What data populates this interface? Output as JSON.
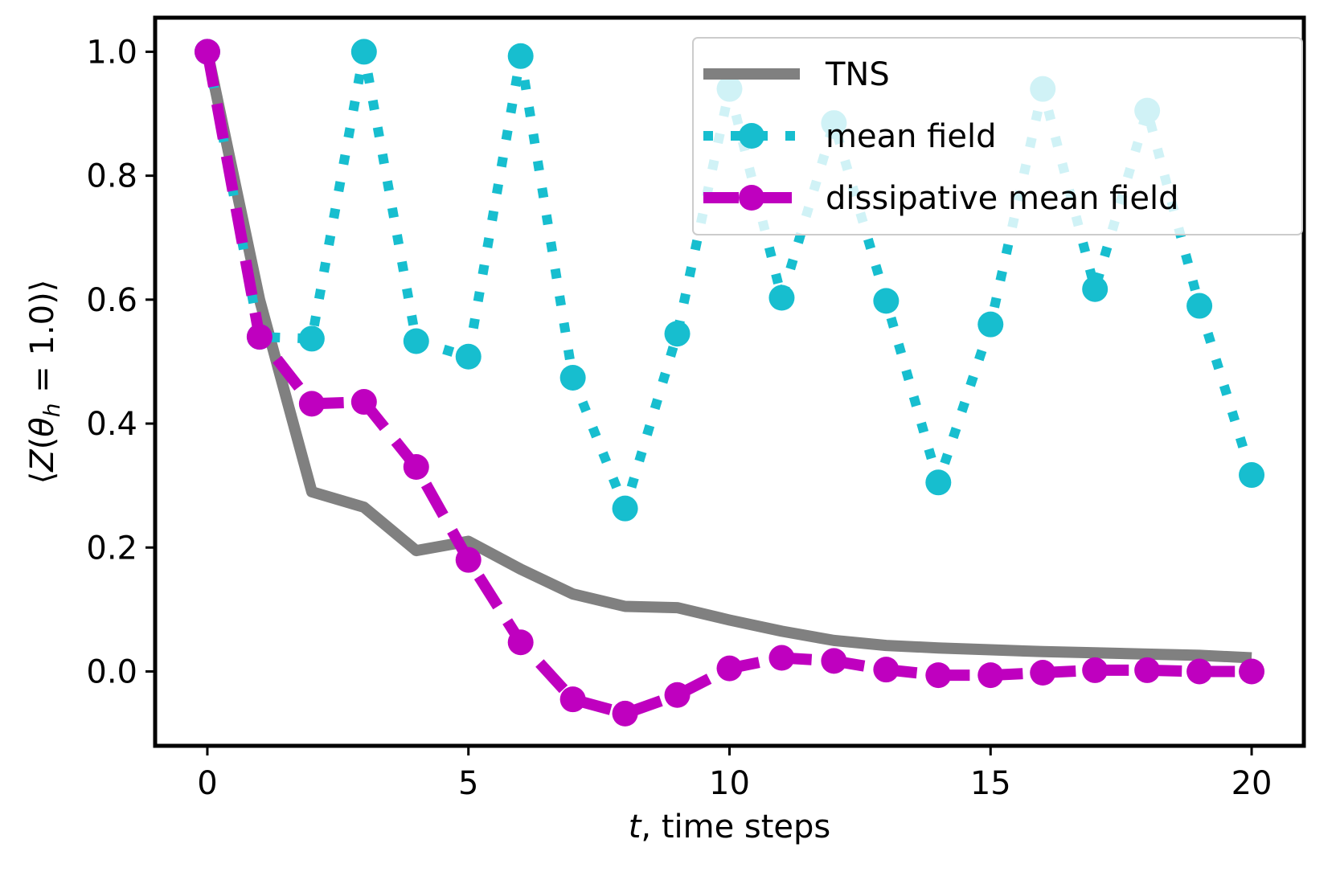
{
  "chart_data": {
    "type": "line",
    "xlabel_italic": "t",
    "xlabel_rest": ", time steps",
    "ylabel_parts": [
      "⟨",
      "Z",
      "(",
      "θ",
      "h",
      " = 1.0)⟩"
    ],
    "xlim": [
      -1,
      21
    ],
    "ylim": [
      -0.12,
      1.055
    ],
    "xticks": [
      0,
      5,
      10,
      15,
      20
    ],
    "yticks": [
      0.0,
      0.2,
      0.4,
      0.6,
      0.8,
      1.0
    ],
    "ytick_labels": [
      "0.0",
      "0.2",
      "0.4",
      "0.6",
      "0.8",
      "1.0"
    ],
    "legend_position": "top-right",
    "series": [
      {
        "name": "TNS",
        "style": "solid",
        "color": "#808080",
        "x": [
          0,
          1,
          2,
          3,
          4,
          5,
          6,
          7,
          8,
          9,
          10,
          11,
          12,
          13,
          14,
          15,
          16,
          17,
          18,
          19,
          20
        ],
        "values": [
          1.0,
          0.6,
          0.29,
          0.265,
          0.195,
          0.21,
          0.165,
          0.125,
          0.105,
          0.103,
          0.083,
          0.065,
          0.05,
          0.042,
          0.038,
          0.035,
          0.032,
          0.03,
          0.028,
          0.026,
          0.022
        ]
      },
      {
        "name": "mean field",
        "style": "dotted",
        "color": "#17becf",
        "marker": "circle",
        "x": [
          0,
          1,
          2,
          3,
          4,
          5,
          6,
          7,
          8,
          9,
          10,
          11,
          12,
          13,
          14,
          15,
          16,
          17,
          18,
          19,
          20
        ],
        "values": [
          1.0,
          0.54,
          0.537,
          1.0,
          0.533,
          0.508,
          0.993,
          0.474,
          0.263,
          0.545,
          0.94,
          0.603,
          0.885,
          0.598,
          0.305,
          0.56,
          0.94,
          0.617,
          0.905,
          0.59,
          0.317
        ]
      },
      {
        "name": "dissipative mean field",
        "style": "dashed",
        "color": "#bf00bf",
        "marker": "circle",
        "x": [
          0,
          1,
          2,
          3,
          4,
          5,
          6,
          7,
          8,
          9,
          10,
          11,
          12,
          13,
          14,
          15,
          16,
          17,
          18,
          19,
          20
        ],
        "values": [
          1.0,
          0.54,
          0.432,
          0.435,
          0.33,
          0.18,
          0.047,
          -0.045,
          -0.068,
          -0.038,
          0.005,
          0.022,
          0.017,
          0.003,
          -0.006,
          -0.006,
          -0.002,
          0.002,
          0.002,
          0.0,
          0.0
        ]
      }
    ]
  }
}
